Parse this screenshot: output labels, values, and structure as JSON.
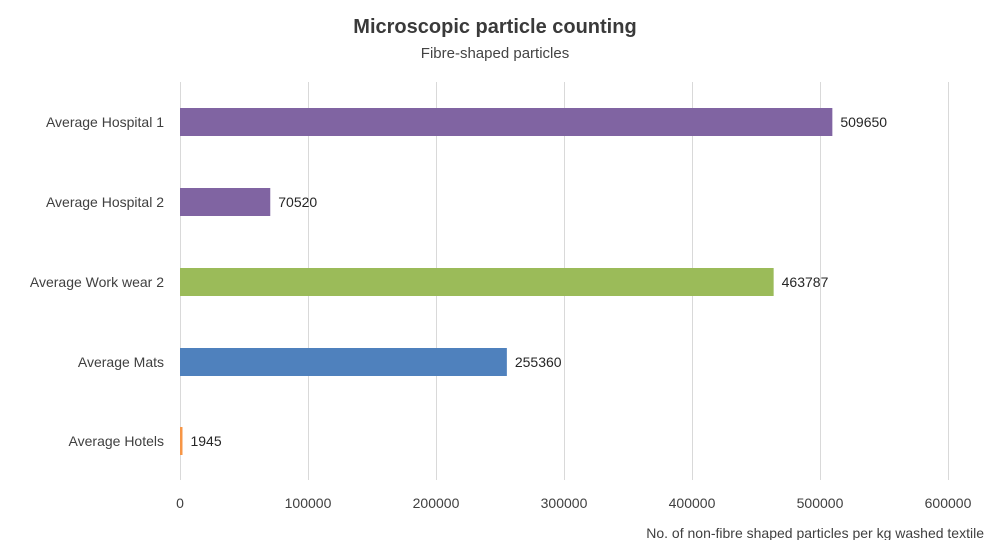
{
  "chart_data": {
    "type": "bar",
    "orientation": "horizontal",
    "title": "Microscopic particle counting",
    "subtitle": "Fibre-shaped particles",
    "xlabel": "No. of non-fibre shaped particles per kg washed textile",
    "ylabel": "",
    "categories": [
      "Average Hospital 1",
      "Average Hospital 2",
      "Average Work wear 2",
      "Average Mats",
      "Average Hotels"
    ],
    "values": [
      509650,
      70520,
      463787,
      255360,
      1945
    ],
    "data_labels": [
      "509650",
      "70520",
      "463787",
      "255360",
      "1945"
    ],
    "bar_colors": [
      "#8064a2",
      "#8064a2",
      "#9bbb59",
      "#4f81bd",
      "#f79646"
    ],
    "xlim": [
      0,
      600000
    ],
    "xticks": [
      0,
      100000,
      200000,
      300000,
      400000,
      500000,
      600000
    ],
    "xtick_labels": [
      "0",
      "100000",
      "200000",
      "300000",
      "400000",
      "500000",
      "600000"
    ],
    "grid": "vertical",
    "legend": "none"
  }
}
